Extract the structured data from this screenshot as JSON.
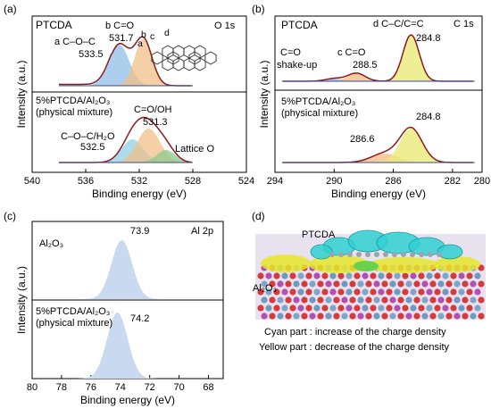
{
  "panel_labels": [
    "(a)",
    "(b)",
    "(c)",
    "(d)"
  ],
  "chart_data": [
    {
      "panel": "(a)",
      "type": "line",
      "xlabel": "Binding energy (eV)",
      "ylabel": "Intensity (a.u.)",
      "xlim": [
        540,
        524
      ],
      "x_ticks": [
        540,
        536,
        532,
        528,
        524
      ],
      "tag": "O 1s",
      "top": {
        "sample": "PTCDA",
        "series": [
          {
            "peak_label": "a C–O–C",
            "center": 533.5,
            "color": "#8fbfe6"
          },
          {
            "peak_label": "b C=O",
            "center": 531.7,
            "color": "#f2c08a"
          }
        ],
        "value_labels": [
          "533.5",
          "531.7"
        ],
        "structure_labels": [
          "a",
          "b",
          "c",
          "d"
        ]
      },
      "bottom": {
        "sample_line1": "5%PTCDA/Al₂O₃",
        "sample_line2": "(physical mixture)",
        "series": [
          {
            "peak_label": "C–O–C/H₂O",
            "center": 532.5,
            "color": "#8fd0e8"
          },
          {
            "peak_label": "C=O/OH",
            "center": 531.3,
            "color": "#f2c08a"
          },
          {
            "peak_label": "Lattice O",
            "center": 530.0,
            "color": "#8cc98a"
          }
        ],
        "value_labels": [
          "532.5",
          "531.3"
        ]
      }
    },
    {
      "panel": "(b)",
      "type": "line",
      "xlabel": "Binding energy (eV)",
      "ylabel": "Intensity (a.u.)",
      "xlim": [
        294,
        280
      ],
      "x_ticks": [
        294,
        290,
        286,
        282,
        280
      ],
      "tag": "C 1s",
      "top": {
        "sample": "PTCDA",
        "series": [
          {
            "peak_label": "C=O shake-up",
            "center": 290.0,
            "color": "#8fbfe6"
          },
          {
            "peak_label": "c C=O",
            "center": 288.5,
            "color": "#f2c08a"
          },
          {
            "peak_label": "d C–C/C=C",
            "center": 284.8,
            "color": "#eaea7a"
          }
        ],
        "value_labels": [
          "288.5",
          "284.8"
        ]
      },
      "bottom": {
        "sample_line1": "5%PTCDA/Al₂O₃",
        "sample_line2": "(physical mixture)",
        "series": [
          {
            "center": 286.6,
            "color": "#f2c08a"
          },
          {
            "center": 284.8,
            "color": "#eaea7a"
          }
        ],
        "value_labels": [
          "286.6",
          "284.8"
        ]
      }
    },
    {
      "panel": "(c)",
      "type": "area",
      "xlabel": "Binding energy (eV)",
      "ylabel": "Intensity (a.u.)",
      "xlim": [
        80,
        67
      ],
      "x_ticks": [
        80,
        78,
        76,
        74,
        72,
        70,
        68
      ],
      "tag": "Al 2p",
      "top": {
        "sample": "Al₂O₃",
        "center": 73.9,
        "value_label": "73.9"
      },
      "bottom": {
        "sample_line1": "5%PTCDA/Al₂O₃",
        "sample_line2": "(physical mixture)",
        "center": 74.2,
        "value_label": "74.2"
      }
    }
  ],
  "panel_d": {
    "label_ptcda": "PTCDA",
    "label_al2o3": "Al₂O₃",
    "legend_cyan": "Cyan part : increase of the charge density",
    "legend_yellow": "Yellow part : decrease of the charge density"
  }
}
